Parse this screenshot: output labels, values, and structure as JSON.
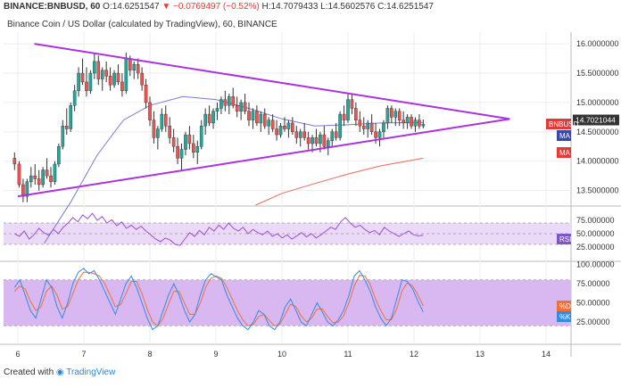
{
  "header": {
    "symbol": "BINANCE:BNBUSD, 60",
    "open_label": "O:",
    "open": "14.6251547",
    "change": "−0.0769497 (−0.52%)",
    "change_arrow": "▼",
    "high_label": "H:",
    "high": "14.7079433",
    "low_label": "L:",
    "low": "14.5602576",
    "close_label": "C:",
    "close": "14.6251547",
    "subtitle": "Binance Coin / US Dollar (calculated by TradingView), 60, BINANCE"
  },
  "footer": {
    "prefix": "Created with",
    "brand": "TradingView"
  },
  "colors": {
    "up": "#26a69a",
    "down": "#ef5350",
    "wick": "#333333",
    "triangle": "#aa33dd",
    "ma_blue": "#7a7ad0",
    "ma_red": "#e86a5a",
    "rsi_line": "#9c4fd6",
    "rsi_band": "#ead9f7",
    "stoch_band": "#d9b8f2",
    "stoch_k": "#2f8de4",
    "stoch_d": "#f0703a",
    "price_label": "#e53935",
    "ma_label": "#3949ab"
  },
  "chart_data": {
    "type": "candlestick",
    "x_ticks": [
      "6",
      "7",
      "8",
      "9",
      "10",
      "11",
      "12",
      "13",
      "14"
    ],
    "price_axis": {
      "ticks": [
        "16.0000000",
        "15.5000000",
        "15.0000000",
        "14.5000000",
        "14.0000000",
        "13.5000000"
      ],
      "range": [
        13.25,
        16.2
      ],
      "current_price": "14.7021044",
      "labels": [
        "BNBUSD",
        "MA",
        "MA"
      ]
    },
    "candles_note": "x in days (day 6.0 = left tick), OHLC in USD",
    "candles": [
      [
        5.95,
        14.05,
        14.15,
        13.85,
        13.95
      ],
      [
        6.02,
        13.95,
        14.0,
        13.55,
        13.6
      ],
      [
        6.08,
        13.6,
        13.7,
        13.3,
        13.4
      ],
      [
        6.14,
        13.4,
        13.7,
        13.3,
        13.65
      ],
      [
        6.2,
        13.65,
        13.9,
        13.55,
        13.75
      ],
      [
        6.26,
        13.75,
        13.95,
        13.6,
        13.7
      ],
      [
        6.32,
        13.7,
        13.85,
        13.5,
        13.6
      ],
      [
        6.38,
        13.6,
        13.9,
        13.55,
        13.85
      ],
      [
        6.44,
        13.85,
        14.05,
        13.7,
        13.75
      ],
      [
        6.5,
        13.75,
        13.9,
        13.55,
        13.65
      ],
      [
        6.56,
        13.65,
        14.0,
        13.6,
        13.95
      ],
      [
        6.62,
        13.95,
        14.3,
        13.9,
        14.25
      ],
      [
        6.68,
        14.25,
        14.7,
        14.2,
        14.6
      ],
      [
        6.74,
        14.6,
        14.9,
        14.45,
        14.55
      ],
      [
        6.8,
        14.55,
        15.0,
        14.5,
        14.95
      ],
      [
        6.86,
        14.95,
        15.3,
        14.85,
        15.2
      ],
      [
        6.92,
        15.2,
        15.6,
        15.1,
        15.5
      ],
      [
        6.98,
        15.5,
        15.75,
        15.3,
        15.35
      ],
      [
        7.04,
        15.35,
        15.6,
        15.1,
        15.2
      ],
      [
        7.1,
        15.2,
        15.55,
        15.15,
        15.5
      ],
      [
        7.16,
        15.5,
        15.85,
        15.4,
        15.7
      ],
      [
        7.22,
        15.7,
        15.8,
        15.3,
        15.4
      ],
      [
        7.28,
        15.4,
        15.6,
        15.2,
        15.55
      ],
      [
        7.34,
        15.55,
        15.7,
        15.35,
        15.45
      ],
      [
        7.4,
        15.45,
        15.6,
        15.2,
        15.3
      ],
      [
        7.46,
        15.3,
        15.55,
        15.25,
        15.5
      ],
      [
        7.52,
        15.5,
        15.65,
        15.3,
        15.35
      ],
      [
        7.58,
        15.35,
        15.5,
        15.1,
        15.2
      ],
      [
        7.64,
        15.2,
        15.85,
        15.15,
        15.75
      ],
      [
        7.7,
        15.75,
        15.8,
        15.45,
        15.55
      ],
      [
        7.76,
        15.55,
        15.7,
        15.4,
        15.65
      ],
      [
        7.82,
        15.65,
        15.75,
        15.4,
        15.5
      ],
      [
        7.88,
        15.5,
        15.6,
        15.2,
        15.3
      ],
      [
        7.94,
        15.3,
        15.4,
        14.9,
        15.0
      ],
      [
        8.0,
        15.0,
        15.1,
        14.6,
        14.7
      ],
      [
        8.06,
        14.7,
        14.85,
        14.3,
        14.4
      ],
      [
        8.12,
        14.4,
        14.6,
        14.2,
        14.55
      ],
      [
        8.18,
        14.55,
        14.9,
        14.5,
        14.8
      ],
      [
        8.24,
        14.8,
        14.95,
        14.5,
        14.6
      ],
      [
        8.3,
        14.6,
        14.75,
        14.3,
        14.4
      ],
      [
        8.36,
        14.4,
        14.55,
        14.15,
        14.25
      ],
      [
        8.42,
        14.25,
        14.4,
        13.95,
        14.05
      ],
      [
        8.48,
        14.05,
        14.3,
        13.85,
        14.2
      ],
      [
        8.54,
        14.2,
        14.5,
        14.1,
        14.45
      ],
      [
        8.6,
        14.45,
        14.6,
        14.2,
        14.3
      ],
      [
        8.66,
        14.3,
        14.45,
        14.05,
        14.15
      ],
      [
        8.72,
        14.15,
        14.35,
        13.95,
        14.25
      ],
      [
        8.78,
        14.25,
        14.7,
        14.2,
        14.6
      ],
      [
        8.84,
        14.6,
        14.9,
        14.45,
        14.8
      ],
      [
        8.9,
        14.8,
        14.95,
        14.6,
        14.65
      ],
      [
        8.96,
        14.65,
        14.9,
        14.55,
        14.85
      ],
      [
        9.02,
        14.85,
        15.0,
        14.7,
        14.9
      ],
      [
        9.08,
        14.9,
        15.1,
        14.8,
        15.05
      ],
      [
        9.14,
        15.05,
        15.2,
        14.85,
        14.95
      ],
      [
        9.2,
        14.95,
        15.15,
        14.8,
        15.1
      ],
      [
        9.26,
        15.1,
        15.25,
        14.9,
        14.95
      ],
      [
        9.32,
        14.95,
        15.1,
        14.75,
        14.85
      ],
      [
        9.38,
        14.85,
        15.05,
        14.7,
        15.0
      ],
      [
        9.44,
        15.0,
        15.15,
        14.8,
        14.85
      ],
      [
        9.5,
        14.85,
        15.0,
        14.6,
        14.7
      ],
      [
        9.56,
        14.7,
        14.9,
        14.55,
        14.85
      ],
      [
        9.62,
        14.85,
        14.95,
        14.6,
        14.65
      ],
      [
        9.68,
        14.65,
        14.85,
        14.5,
        14.8
      ],
      [
        9.74,
        14.8,
        14.9,
        14.55,
        14.6
      ],
      [
        9.8,
        14.6,
        14.75,
        14.45,
        14.7
      ],
      [
        9.86,
        14.7,
        14.8,
        14.5,
        14.55
      ],
      [
        9.92,
        14.55,
        14.7,
        14.35,
        14.45
      ],
      [
        9.98,
        14.45,
        14.65,
        14.4,
        14.6
      ],
      [
        10.04,
        14.6,
        14.75,
        14.5,
        14.55
      ],
      [
        10.1,
        14.55,
        14.7,
        14.4,
        14.65
      ],
      [
        10.16,
        14.65,
        14.75,
        14.45,
        14.5
      ],
      [
        10.22,
        14.5,
        14.6,
        14.3,
        14.4
      ],
      [
        10.28,
        14.4,
        14.55,
        14.25,
        14.5
      ],
      [
        10.34,
        14.5,
        14.65,
        14.35,
        14.4
      ],
      [
        10.4,
        14.4,
        14.5,
        14.2,
        14.3
      ],
      [
        10.46,
        14.3,
        14.45,
        14.15,
        14.4
      ],
      [
        10.52,
        14.4,
        14.55,
        14.25,
        14.3
      ],
      [
        10.58,
        14.3,
        14.5,
        14.15,
        14.45
      ],
      [
        10.64,
        14.45,
        14.6,
        14.2,
        14.25
      ],
      [
        10.7,
        14.25,
        14.4,
        14.1,
        14.35
      ],
      [
        10.76,
        14.35,
        14.55,
        14.25,
        14.5
      ],
      [
        10.82,
        14.5,
        14.65,
        14.35,
        14.4
      ],
      [
        10.88,
        14.4,
        14.85,
        14.35,
        14.8
      ],
      [
        10.94,
        14.8,
        14.95,
        14.6,
        14.7
      ],
      [
        11.0,
        14.7,
        15.15,
        14.65,
        15.05
      ],
      [
        11.06,
        15.05,
        15.15,
        14.8,
        14.9
      ],
      [
        11.12,
        14.9,
        15.0,
        14.6,
        14.7
      ],
      [
        11.18,
        14.7,
        14.85,
        14.5,
        14.6
      ],
      [
        11.24,
        14.6,
        14.75,
        14.45,
        14.55
      ],
      [
        11.3,
        14.55,
        14.7,
        14.4,
        14.65
      ],
      [
        11.36,
        14.65,
        14.8,
        14.45,
        14.5
      ],
      [
        11.42,
        14.5,
        14.65,
        14.3,
        14.4
      ],
      [
        11.48,
        14.4,
        14.55,
        14.25,
        14.5
      ],
      [
        11.54,
        14.5,
        14.7,
        14.4,
        14.65
      ],
      [
        11.6,
        14.65,
        14.95,
        14.55,
        14.9
      ],
      [
        11.66,
        14.9,
        14.95,
        14.65,
        14.75
      ],
      [
        11.72,
        14.75,
        14.9,
        14.6,
        14.85
      ],
      [
        11.78,
        14.85,
        14.9,
        14.6,
        14.7
      ],
      [
        11.84,
        14.7,
        14.85,
        14.55,
        14.65
      ],
      [
        11.9,
        14.65,
        14.8,
        14.55,
        14.75
      ],
      [
        11.96,
        14.75,
        14.8,
        14.55,
        14.6
      ],
      [
        12.02,
        14.6,
        14.75,
        14.5,
        14.7
      ],
      [
        12.08,
        14.7,
        14.8,
        14.55,
        14.6
      ],
      [
        12.14,
        14.6,
        14.71,
        14.56,
        14.63
      ]
    ],
    "triangle": {
      "upper": [
        [
          6.25,
          16.0
        ],
        [
          13.45,
          14.72
        ]
      ],
      "lower": [
        [
          6.0,
          13.4
        ],
        [
          13.45,
          14.72
        ]
      ]
    },
    "ma_blue": [
      [
        6.4,
        12.6
      ],
      [
        6.8,
        13.3
      ],
      [
        7.2,
        14.1
      ],
      [
        7.6,
        14.7
      ],
      [
        8.0,
        14.95
      ],
      [
        8.5,
        15.1
      ],
      [
        9.0,
        15.05
      ],
      [
        9.5,
        14.9
      ],
      [
        10.0,
        14.72
      ],
      [
        10.5,
        14.6
      ],
      [
        11.0,
        14.62
      ],
      [
        11.5,
        14.65
      ],
      [
        12.14,
        14.66
      ]
    ],
    "ma_red": [
      [
        9.6,
        13.25
      ],
      [
        10.0,
        13.45
      ],
      [
        10.5,
        13.62
      ],
      [
        11.0,
        13.78
      ],
      [
        11.5,
        13.92
      ],
      [
        12.14,
        14.05
      ]
    ],
    "rsi": {
      "ticks": [
        "75.000000",
        "50.000000",
        "25.000000"
      ],
      "band": [
        30,
        70
      ],
      "label": "RSI",
      "values": [
        50,
        45,
        55,
        40,
        48,
        60,
        52,
        47,
        58,
        50,
        62,
        70,
        80,
        72,
        85,
        78,
        88,
        75,
        82,
        70,
        76,
        65,
        72,
        60,
        66,
        58,
        64,
        55,
        48,
        40,
        35,
        42,
        38,
        30,
        28,
        40,
        52,
        45,
        56,
        48,
        62,
        55,
        66,
        58,
        70,
        60,
        55,
        62,
        50,
        58,
        52,
        48,
        55,
        45,
        50,
        42,
        48,
        40,
        46,
        52,
        44,
        50,
        42,
        48,
        55,
        62,
        58,
        72,
        80,
        70,
        62,
        66,
        58,
        52,
        56,
        48,
        62,
        55,
        50,
        45,
        50,
        55,
        48,
        46,
        47
      ]
    },
    "stoch": {
      "ticks": [
        "100.00000",
        "75.00000",
        "50.00000",
        "25.00000"
      ],
      "band": [
        20,
        80
      ],
      "labels": [
        "%D",
        "%K"
      ],
      "k": [
        70,
        80,
        60,
        40,
        30,
        55,
        80,
        70,
        45,
        30,
        50,
        75,
        90,
        95,
        88,
        92,
        80,
        65,
        50,
        35,
        55,
        75,
        85,
        70,
        50,
        30,
        15,
        20,
        40,
        60,
        75,
        60,
        40,
        25,
        35,
        60,
        80,
        88,
        84,
        80,
        60,
        45,
        30,
        20,
        15,
        25,
        40,
        35,
        20,
        15,
        25,
        45,
        55,
        40,
        25,
        20,
        35,
        50,
        38,
        25,
        20,
        28,
        40,
        60,
        85,
        92,
        80,
        65,
        45,
        30,
        20,
        30,
        55,
        80,
        78,
        68,
        52,
        38
      ],
      "d": [
        65,
        72,
        68,
        52,
        40,
        45,
        65,
        72,
        60,
        42,
        45,
        62,
        80,
        90,
        90,
        88,
        85,
        75,
        60,
        45,
        48,
        62,
        78,
        78,
        62,
        42,
        25,
        20,
        30,
        48,
        65,
        65,
        50,
        35,
        35,
        50,
        70,
        82,
        85,
        82,
        70,
        55,
        40,
        28,
        20,
        22,
        32,
        35,
        27,
        20,
        22,
        35,
        48,
        45,
        33,
        25,
        30,
        42,
        42,
        32,
        24,
        25,
        33,
        50,
        72,
        86,
        85,
        74,
        55,
        40,
        28,
        28,
        42,
        66,
        76,
        72,
        60,
        46
      ]
    }
  }
}
